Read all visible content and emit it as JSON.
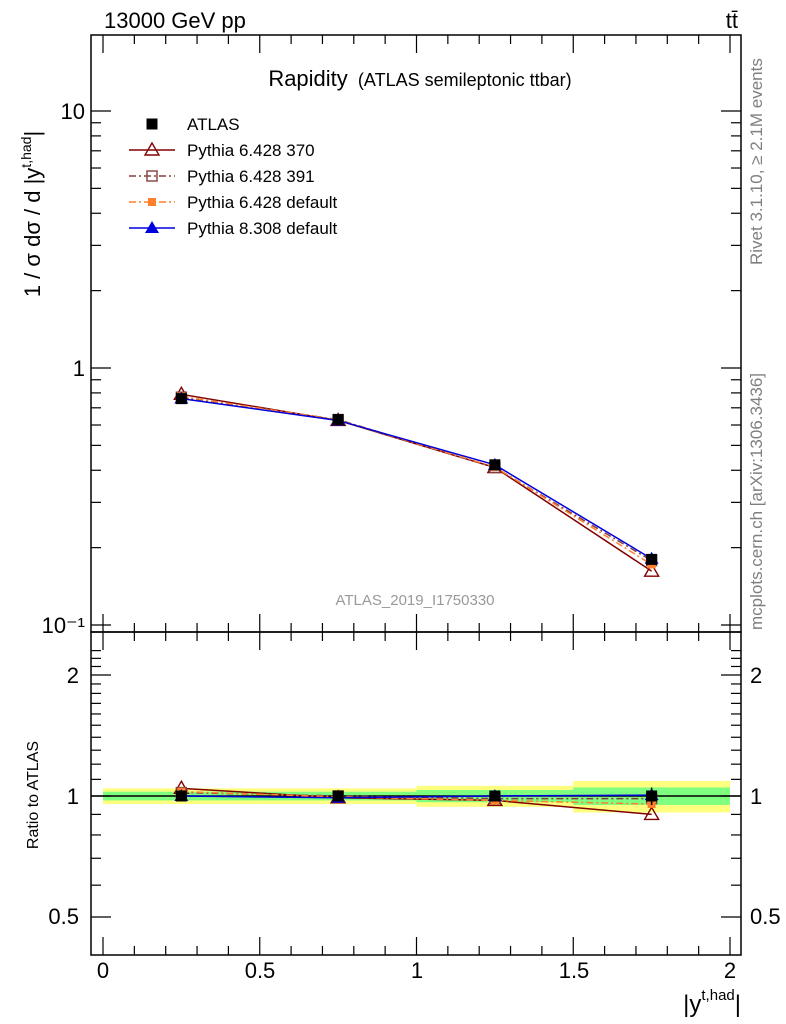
{
  "header": {
    "left": "13000 GeV pp",
    "right": "tt̄"
  },
  "side_texts": {
    "rivet": "Rivet 3.1.10, ≥ 2.1M events",
    "mcplots": "mcplots.cern.ch [arXiv:1306.3436]"
  },
  "watermark": "ATLAS_2019_I1750330",
  "chart_data": [
    {
      "type": "line",
      "title": "Rapidity",
      "subtitle": "(ATLAS semileptonic ttbar)",
      "ylabel": "1 / σ dσ / d |y^{t,had}|",
      "xlabel": "",
      "yscale": "log",
      "ylim": [
        0.1,
        20
      ],
      "xlim": [
        -0.05,
        2.05
      ],
      "ytick_labels": [
        "10",
        "1",
        "10⁻¹"
      ],
      "grid": false,
      "legend_position": "top-left",
      "x": [
        0.25,
        0.75,
        1.25,
        1.75
      ],
      "series": [
        {
          "name": "ATLAS",
          "values": [
            0.76,
            0.63,
            0.42,
            0.18
          ],
          "errors": [
            0.02,
            0.015,
            0.01,
            0.008
          ],
          "color": "#000000",
          "marker": "square-filled",
          "line": "none"
        },
        {
          "name": "Pythia 6.428 370",
          "values": [
            0.79,
            0.625,
            0.41,
            0.162
          ],
          "color": "#800000",
          "marker": "triangle-open",
          "line": "solid"
        },
        {
          "name": "Pythia 6.428 391",
          "values": [
            0.77,
            0.63,
            0.41,
            0.178
          ],
          "color": "#804040",
          "marker": "square-open",
          "line": "dashdot"
        },
        {
          "name": "Pythia 6.428 default",
          "values": [
            0.775,
            0.628,
            0.412,
            0.172
          ],
          "color": "#ff7f2a",
          "marker": "square-filled-small",
          "line": "dashdot"
        },
        {
          "name": "Pythia 8.308 default",
          "values": [
            0.76,
            0.625,
            0.42,
            0.181
          ],
          "color": "#0000dd",
          "marker": "triangle-filled",
          "line": "solid"
        }
      ]
    },
    {
      "type": "line",
      "title": "",
      "ylabel": "Ratio to ATLAS",
      "xlabel": "|y^{t,had}|",
      "yscale": "log",
      "ylim": [
        0.4,
        2.4
      ],
      "xlim": [
        -0.05,
        2.05
      ],
      "ytick_labels": [
        "2",
        "1",
        "0.5"
      ],
      "xtick_labels": [
        "0",
        "0.5",
        "1",
        "1.5",
        "2"
      ],
      "grid": false,
      "x": [
        0.25,
        0.75,
        1.25,
        1.75
      ],
      "bands": [
        {
          "x_edges": [
            0,
            0.5,
            1.0,
            1.5,
            2.0
          ],
          "half_widths": [
            0.045,
            0.045,
            0.06,
            0.09
          ],
          "color": "#ffff7f"
        },
        {
          "x_edges": [
            0,
            0.5,
            1.0,
            1.5,
            2.0
          ],
          "half_widths": [
            0.025,
            0.025,
            0.035,
            0.05
          ],
          "color": "#7fff7f"
        }
      ],
      "series": [
        {
          "name": "ATLAS",
          "values": [
            1.0,
            1.0,
            1.0,
            1.0
          ],
          "errors": [
            0.02,
            0.02,
            0.03,
            0.05
          ],
          "color": "#000000"
        },
        {
          "name": "Pythia 6.428 370",
          "values": [
            1.045,
            0.99,
            0.975,
            0.9
          ],
          "color": "#800000"
        },
        {
          "name": "Pythia 6.428 391",
          "values": [
            1.02,
            1.0,
            0.985,
            0.985
          ],
          "color": "#804040"
        },
        {
          "name": "Pythia 6.428 default",
          "values": [
            1.025,
            0.995,
            0.975,
            0.955
          ],
          "color": "#ff7f2a"
        },
        {
          "name": "Pythia 8.308 default",
          "values": [
            1.0,
            0.99,
            1.0,
            1.005
          ],
          "color": "#0000dd"
        }
      ]
    }
  ]
}
